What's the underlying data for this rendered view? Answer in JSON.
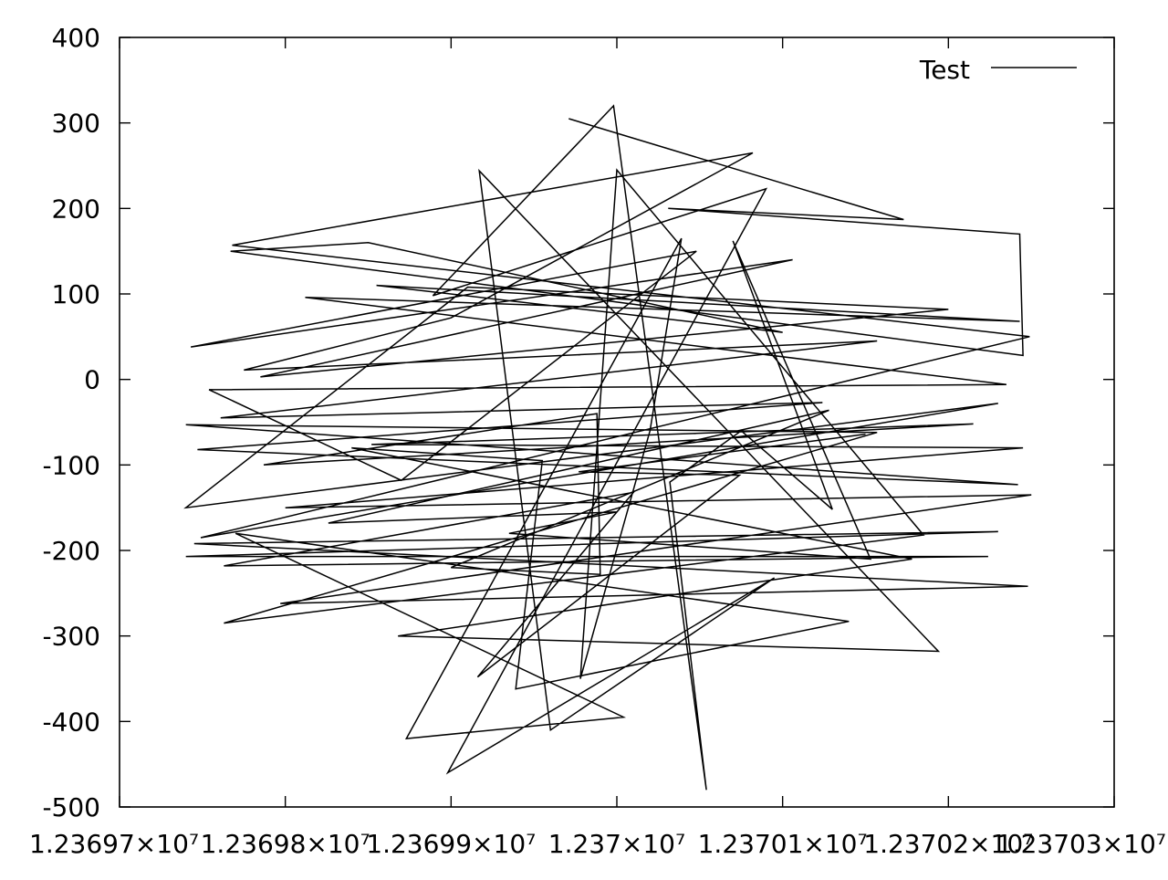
{
  "chart_data": {
    "type": "line",
    "title": "",
    "xlabel": "",
    "ylabel": "",
    "xlim": [
      12369700,
      12370300
    ],
    "ylim": [
      -500,
      400
    ],
    "grid": false,
    "legend_position": "top-right",
    "x_ticks": [
      12369700,
      12369800,
      12369900,
      12370000,
      12370100,
      12370200,
      12370300
    ],
    "x_tick_labels": [
      "1.23697×10⁷",
      "1.23698×10⁷",
      "1.23699×10⁷",
      "1.237×10⁷",
      "1.23701×10⁷",
      "1.23702×10⁷",
      "1.23703×10⁷"
    ],
    "y_ticks": [
      400,
      300,
      200,
      100,
      0,
      -100,
      -200,
      -300,
      -400,
      -500
    ],
    "y_tick_labels": [
      "400",
      "300",
      "200",
      "100",
      "0",
      "-100",
      "-200",
      "-300",
      "-400",
      "-500"
    ],
    "series": [
      {
        "name": "Test",
        "color": "#000000",
        "points": [
          [
            12369971,
            305
          ],
          [
            12370111,
            223
          ],
          [
            12370173,
            187
          ],
          [
            12370031,
            200
          ],
          [
            12370243,
            170
          ],
          [
            12370245,
            28
          ],
          [
            12369767,
            150
          ],
          [
            12369850,
            160
          ],
          [
            12370100,
            55
          ],
          [
            12369855,
            110
          ],
          [
            12370243,
            68
          ],
          [
            12369812,
            96
          ],
          [
            12370235,
            -6
          ],
          [
            12369754,
            -12
          ],
          [
            12369870,
            -118
          ],
          [
            12370048,
            150
          ],
          [
            12369743,
            38
          ],
          [
            12370106,
            140
          ],
          [
            12369785,
            3
          ],
          [
            12370200,
            82
          ],
          [
            12369910,
            108
          ],
          [
            12369740,
            -150
          ],
          [
            12370230,
            -28
          ],
          [
            12369749,
            -185
          ],
          [
            12370249,
            50
          ],
          [
            12369768,
            157
          ],
          [
            12370082,
            265
          ],
          [
            12369900,
            72
          ],
          [
            12369775,
            11
          ],
          [
            12370157,
            45
          ],
          [
            12369761,
            -45
          ],
          [
            12370124,
            -27
          ],
          [
            12369747,
            -82
          ],
          [
            12370242,
            -123
          ],
          [
            12369740,
            -53
          ],
          [
            12370157,
            -62
          ],
          [
            12369763,
            -285
          ],
          [
            12370185,
            -182
          ],
          [
            12370000,
            245
          ],
          [
            12369978,
            -350
          ],
          [
            12370020,
            -60
          ],
          [
            12370039,
            165
          ],
          [
            12369873,
            -420
          ],
          [
            12370004,
            -395
          ],
          [
            12369770,
            -180
          ],
          [
            12370140,
            -283
          ],
          [
            12369939,
            -362
          ],
          [
            12369955,
            -95
          ],
          [
            12369840,
            -80
          ],
          [
            12370178,
            -210
          ],
          [
            12369868,
            -300
          ],
          [
            12370194,
            -318
          ],
          [
            12369917,
            244
          ],
          [
            12369960,
            -410
          ],
          [
            12370095,
            -232
          ],
          [
            12369898,
            -460
          ],
          [
            12370090,
            223
          ],
          [
            12369889,
            98
          ],
          [
            12369998,
            320
          ],
          [
            12370054,
            -480
          ],
          [
            12370032,
            -120
          ],
          [
            12370075,
            -60
          ],
          [
            12370130,
            -152
          ],
          [
            12370070,
            162
          ],
          [
            12370153,
            -210
          ],
          [
            12369935,
            -180
          ],
          [
            12370000,
            -155
          ],
          [
            12369826,
            -168
          ],
          [
            12370128,
            -36
          ],
          [
            12369900,
            -220
          ],
          [
            12369990,
            -228
          ],
          [
            12369988,
            -40
          ],
          [
            12369787,
            -100
          ],
          [
            12370215,
            -52
          ],
          [
            12369852,
            -76
          ],
          [
            12370245,
            -80
          ],
          [
            12369800,
            -150
          ],
          [
            12370250,
            -135
          ],
          [
            12369797,
            -262
          ],
          [
            12370248,
            -242
          ],
          [
            12369745,
            -192
          ],
          [
            12370230,
            -178
          ],
          [
            12369740,
            -207
          ],
          [
            12370224,
            -207
          ],
          [
            12369763,
            -218
          ],
          [
            12370010,
            -132
          ],
          [
            12369916,
            -348
          ],
          [
            12370074,
            -112
          ],
          [
            12369977,
            -108
          ],
          [
            12370150,
            -64
          ]
        ]
      }
    ]
  }
}
